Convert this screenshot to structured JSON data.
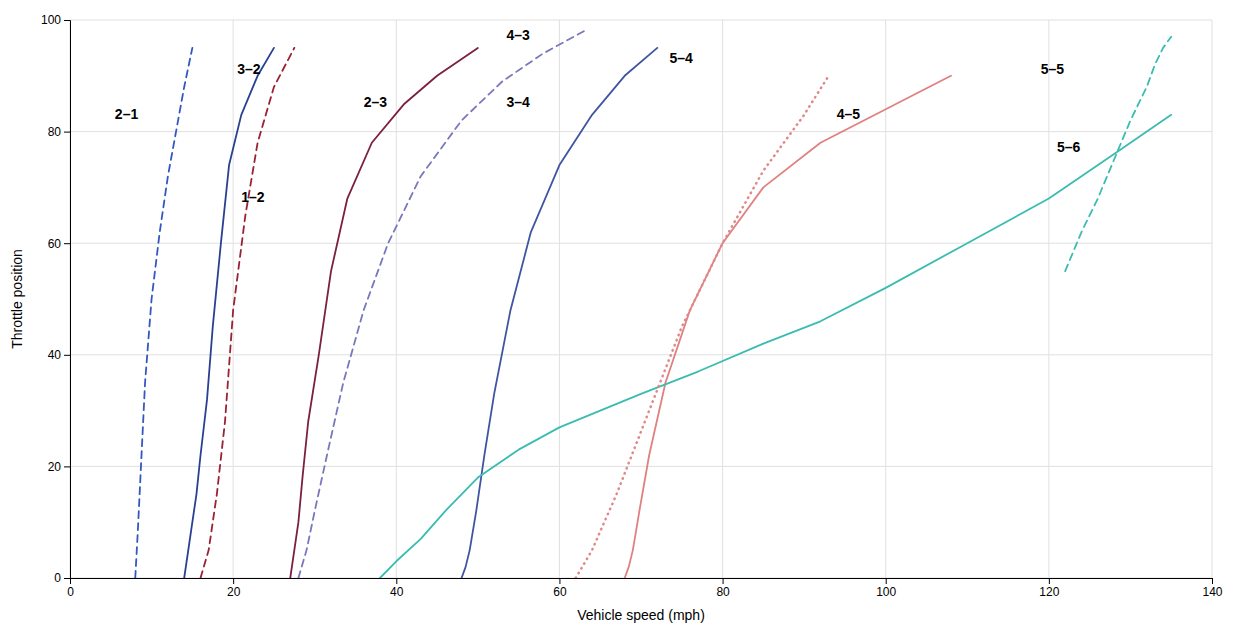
{
  "chart_data": {
    "type": "line",
    "xlabel": "Vehicle speed (mph)",
    "ylabel": "Throttle position",
    "xlim": [
      0,
      140
    ],
    "ylim": [
      0,
      100
    ],
    "xticks": [
      0,
      20,
      40,
      60,
      80,
      100,
      120,
      140
    ],
    "yticks": [
      0,
      20,
      40,
      60,
      80,
      100
    ],
    "grid": true,
    "series": [
      {
        "color": "#2a4090",
        "line_style": "solid",
        "x": [
          14,
          14.2,
          14.5,
          15.0,
          15.5,
          16.0,
          16.8,
          17.5,
          18.5,
          19.5,
          21.0,
          23.0,
          25.0
        ],
        "values": [
          0,
          2,
          5,
          10,
          15,
          22,
          32,
          45,
          60,
          74,
          83,
          90,
          95
        ]
      },
      {
        "color": "#7a2040",
        "line_style": "solid",
        "x": [
          27,
          27.2,
          27.5,
          28.0,
          28.5,
          29.2,
          30.5,
          32.0,
          34.0,
          37.0,
          41.0,
          45.0,
          50.0
        ],
        "values": [
          0,
          2,
          5,
          10,
          18,
          28,
          40,
          55,
          68,
          78,
          85,
          90,
          95
        ]
      },
      {
        "color": "#4055a0",
        "line_style": "solid",
        "x": [
          48,
          48.5,
          49.0,
          49.8,
          50.8,
          52.0,
          54.0,
          56.5,
          60.0,
          64.0,
          68.0,
          72.0
        ],
        "values": [
          0,
          2,
          5,
          12,
          22,
          33,
          48,
          62,
          74,
          83,
          90,
          95
        ]
      },
      {
        "color": "#e08080",
        "line_style": "solid",
        "x": [
          68,
          68.5,
          69.0,
          69.8,
          71.0,
          73.0,
          76.0,
          80.0,
          85.0,
          92.0,
          100.0,
          108.0
        ],
        "values": [
          0,
          2,
          5,
          12,
          22,
          35,
          48,
          60,
          70,
          78,
          84,
          90
        ]
      },
      {
        "color": "#3abcb0",
        "line_style": "solid",
        "x": [
          38,
          40,
          43,
          46,
          50,
          55,
          60,
          65,
          70,
          77,
          85,
          92,
          100,
          110,
          120,
          128,
          135
        ],
        "values": [
          0,
          3,
          7,
          12,
          18,
          23,
          27,
          30,
          33,
          37,
          42,
          46,
          52,
          60,
          68,
          76,
          83
        ]
      },
      {
        "color": "#3358c4",
        "line_style": "dashed",
        "x": [
          8.0,
          8.3,
          8.7,
          9.2,
          10.0,
          11.0,
          12.0,
          13.0,
          14.0,
          15.0
        ],
        "values": [
          0,
          8,
          20,
          35,
          50,
          62,
          72,
          80,
          88,
          95
        ]
      },
      {
        "color": "#992233",
        "line_style": "dashed",
        "x": [
          16,
          17,
          18,
          19,
          20,
          21.5,
          23.0,
          25.0,
          27.5
        ],
        "values": [
          0,
          5,
          15,
          28,
          48,
          65,
          78,
          88,
          95
        ]
      },
      {
        "color": "#7878bb",
        "line_style": "dashed",
        "x": [
          28,
          29,
          30,
          31.5,
          33.5,
          36.0,
          39.0,
          43.0,
          48.0,
          53.0,
          58.0,
          63.0
        ],
        "values": [
          0,
          5,
          12,
          22,
          35,
          48,
          60,
          72,
          82,
          89,
          94,
          98
        ]
      },
      {
        "color": "#e08888",
        "line_style": "dotted",
        "x": [
          62,
          64,
          67,
          71,
          75,
          80,
          85,
          90,
          93
        ],
        "values": [
          0,
          5,
          15,
          30,
          45,
          60,
          73,
          83,
          90
        ]
      },
      {
        "color": "#3abcb0",
        "line_style": "dashed",
        "x": [
          122,
          124,
          126,
          128,
          130,
          132,
          133,
          134,
          135
        ],
        "values": [
          55,
          62,
          68,
          75,
          82,
          88,
          92,
          95,
          97
        ]
      }
    ],
    "annotations": [
      {
        "x": 5.5,
        "y": 83,
        "text": "2–1"
      },
      {
        "x": 20.5,
        "y": 91,
        "text": "3–2"
      },
      {
        "x": 21.0,
        "y": 68,
        "text": "1–2"
      },
      {
        "x": 36.0,
        "y": 85,
        "text": "2–3"
      },
      {
        "x": 53.5,
        "y": 97,
        "text": "4–3"
      },
      {
        "x": 53.5,
        "y": 85,
        "text": "3–4"
      },
      {
        "x": 73.5,
        "y": 93,
        "text": "5–4"
      },
      {
        "x": 94.0,
        "y": 83,
        "text": "4–5"
      },
      {
        "x": 119.0,
        "y": 91,
        "text": "5–5"
      },
      {
        "x": 121.0,
        "y": 77,
        "text": "5–6"
      }
    ]
  }
}
